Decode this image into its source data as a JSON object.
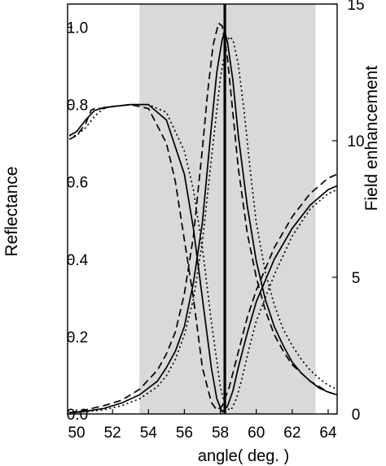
{
  "chart_data": {
    "type": "line",
    "xlabel": "angle( deg. )",
    "ylabel_left": "Reflectance",
    "ylabel_right": "Field enhancement",
    "xlim": [
      49.5,
      64.5
    ],
    "ylim_left": [
      0.0,
      1.06
    ],
    "ylim_right": [
      0,
      15
    ],
    "x_ticks": [
      50,
      52,
      54,
      56,
      58,
      60,
      62,
      64
    ],
    "y_left_ticks": [
      0.0,
      0.2,
      0.4,
      0.6,
      0.8,
      1.0
    ],
    "y_right_ticks": [
      0,
      5,
      10,
      15
    ],
    "shaded_region": {
      "x": [
        53.5,
        63.3
      ],
      "color": "#d9d9d9"
    },
    "vertical_line": {
      "x": 58.25
    },
    "grid": false,
    "legend": "none",
    "series": [
      {
        "axis": "left",
        "style": "solid",
        "x": [
          49.6,
          50.0,
          50.5,
          51.0,
          51.5,
          52.0,
          53.0,
          54.0,
          55.0,
          56.0,
          56.5,
          57.0,
          57.5,
          57.8,
          58.1,
          58.4,
          58.7,
          59.0,
          59.5,
          60.0,
          61.0,
          62.0,
          63.0,
          64.0,
          64.5
        ],
        "y": [
          0.72,
          0.73,
          0.76,
          0.785,
          0.792,
          0.795,
          0.8,
          0.8,
          0.76,
          0.62,
          0.48,
          0.3,
          0.12,
          0.04,
          0.005,
          0.02,
          0.06,
          0.12,
          0.21,
          0.29,
          0.4,
          0.48,
          0.54,
          0.58,
          0.59
        ]
      },
      {
        "axis": "left",
        "style": "dashed",
        "x": [
          49.6,
          50.0,
          50.5,
          50.8,
          51.0,
          51.5,
          52.0,
          53.0,
          54.0,
          55.0,
          55.5,
          56.0,
          56.5,
          57.0,
          57.5,
          57.8,
          58.1,
          58.5,
          59.0,
          59.5,
          60.0,
          61.0,
          62.0,
          63.0,
          64.0,
          64.5
        ],
        "y": [
          0.71,
          0.72,
          0.75,
          0.785,
          0.79,
          0.79,
          0.795,
          0.8,
          0.79,
          0.7,
          0.6,
          0.45,
          0.3,
          0.12,
          0.03,
          0.01,
          0.02,
          0.07,
          0.16,
          0.25,
          0.32,
          0.43,
          0.51,
          0.57,
          0.61,
          0.62
        ]
      },
      {
        "axis": "left",
        "style": "dotted",
        "x": [
          49.6,
          50.0,
          50.5,
          51.0,
          51.5,
          52.0,
          53.0,
          54.0,
          55.0,
          56.0,
          56.5,
          57.0,
          57.5,
          58.0,
          58.3,
          58.6,
          58.9,
          59.2,
          59.6,
          60.0,
          61.0,
          62.0,
          63.0,
          64.0,
          64.5
        ],
        "y": [
          0.72,
          0.72,
          0.74,
          0.77,
          0.79,
          0.795,
          0.8,
          0.8,
          0.78,
          0.68,
          0.58,
          0.43,
          0.24,
          0.07,
          0.015,
          0.01,
          0.04,
          0.09,
          0.17,
          0.24,
          0.36,
          0.46,
          0.53,
          0.57,
          0.58
        ]
      },
      {
        "axis": "right",
        "style": "solid",
        "x": [
          49.6,
          50.5,
          51.5,
          52.5,
          53.5,
          54.5,
          55.0,
          55.5,
          56.0,
          56.5,
          57.0,
          57.5,
          57.8,
          58.1,
          58.25,
          58.4,
          58.7,
          59.0,
          59.5,
          60.0,
          60.5,
          61.0,
          61.5,
          62.0,
          62.5,
          63.0,
          63.5,
          64.0,
          64.5
        ],
        "y": [
          0.05,
          0.1,
          0.2,
          0.4,
          0.7,
          1.2,
          1.7,
          2.3,
          3.2,
          4.8,
          7.0,
          10.5,
          12.5,
          13.7,
          14.0,
          13.6,
          12.2,
          10.2,
          7.6,
          5.6,
          4.2,
          3.2,
          2.5,
          1.9,
          1.5,
          1.2,
          0.95,
          0.8,
          0.7
        ]
      },
      {
        "axis": "right",
        "style": "dashed",
        "x": [
          49.6,
          50.5,
          51.5,
          52.5,
          53.5,
          54.5,
          55.0,
          55.5,
          56.0,
          56.5,
          57.0,
          57.3,
          57.6,
          57.9,
          58.1,
          58.4,
          58.7,
          59.0,
          59.5,
          60.0,
          60.5,
          61.0,
          61.5,
          62.0,
          62.5,
          63.0,
          63.5,
          64.0,
          64.5
        ],
        "y": [
          0.05,
          0.15,
          0.3,
          0.5,
          0.9,
          1.6,
          2.2,
          3.0,
          4.4,
          6.5,
          9.7,
          11.8,
          13.5,
          14.3,
          14.2,
          13.0,
          11.0,
          9.0,
          6.6,
          5.0,
          3.8,
          2.9,
          2.3,
          1.8,
          1.5,
          1.2,
          1.0,
          0.8,
          0.7
        ]
      },
      {
        "axis": "right",
        "style": "dotted",
        "x": [
          49.6,
          50.5,
          51.5,
          52.5,
          53.5,
          54.5,
          55.0,
          55.5,
          56.0,
          56.5,
          57.0,
          57.5,
          58.0,
          58.3,
          58.5,
          58.7,
          59.0,
          59.3,
          59.7,
          60.0,
          60.5,
          61.0,
          61.5,
          62.0,
          62.5,
          63.0,
          63.5,
          64.0,
          64.5
        ],
        "y": [
          0.03,
          0.08,
          0.15,
          0.3,
          0.55,
          1.0,
          1.4,
          2.0,
          2.9,
          4.2,
          6.3,
          9.3,
          12.3,
          13.4,
          13.8,
          13.7,
          12.8,
          11.2,
          8.7,
          7.0,
          5.2,
          4.0,
          3.1,
          2.5,
          2.0,
          1.6,
          1.3,
          1.05,
          0.9
        ]
      }
    ]
  }
}
